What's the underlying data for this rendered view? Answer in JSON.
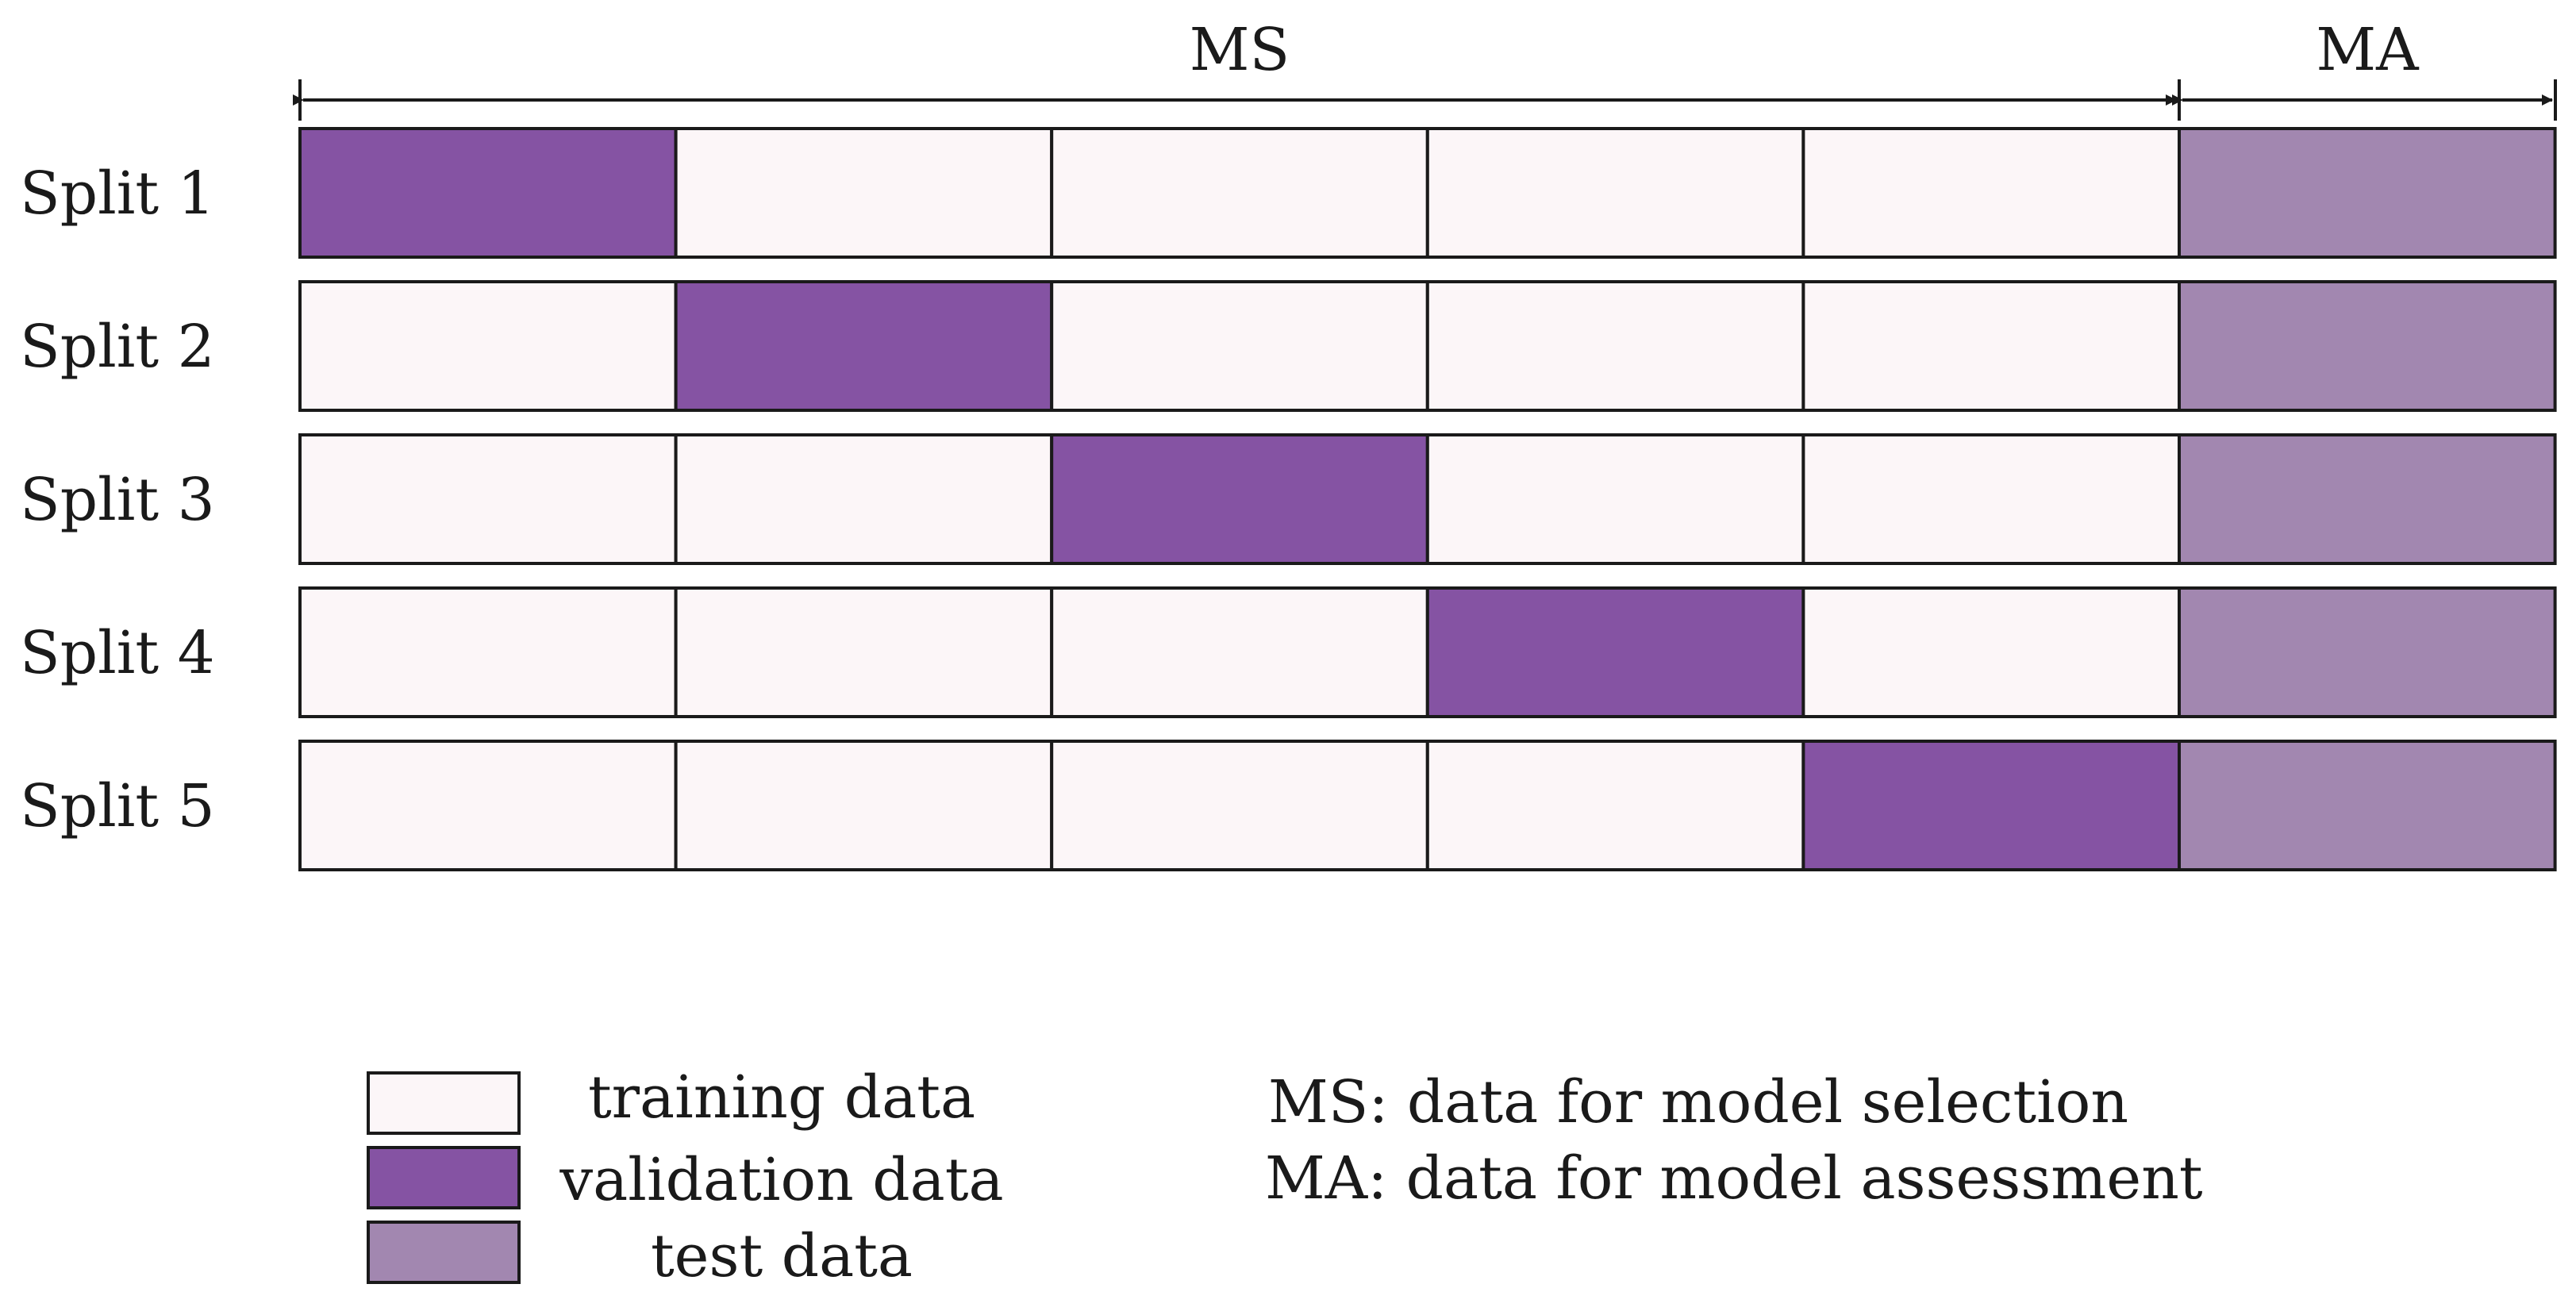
{
  "header": {
    "ms_label": "MS",
    "ma_label": "MA"
  },
  "splits": [
    {
      "label": "Split 1",
      "segments": [
        "validation",
        "training",
        "training",
        "training",
        "training",
        "test"
      ]
    },
    {
      "label": "Split 2",
      "segments": [
        "training",
        "validation",
        "training",
        "training",
        "training",
        "test"
      ]
    },
    {
      "label": "Split 3",
      "segments": [
        "training",
        "training",
        "validation",
        "training",
        "training",
        "test"
      ]
    },
    {
      "label": "Split 4",
      "segments": [
        "training",
        "training",
        "training",
        "validation",
        "training",
        "test"
      ]
    },
    {
      "label": "Split 5",
      "segments": [
        "training",
        "training",
        "training",
        "training",
        "validation",
        "test"
      ]
    }
  ],
  "legend": {
    "items": [
      {
        "key": "training",
        "label": "training data"
      },
      {
        "key": "validation",
        "label": "validation data"
      },
      {
        "key": "test",
        "label": "test data"
      }
    ],
    "notes": [
      "MS: data for model selection",
      "MA: data for model assessment"
    ]
  },
  "colors": {
    "training": "#fcf6f8",
    "validation": "#8553a3",
    "test": "#a287b0",
    "stroke": "#1a1a1a"
  }
}
